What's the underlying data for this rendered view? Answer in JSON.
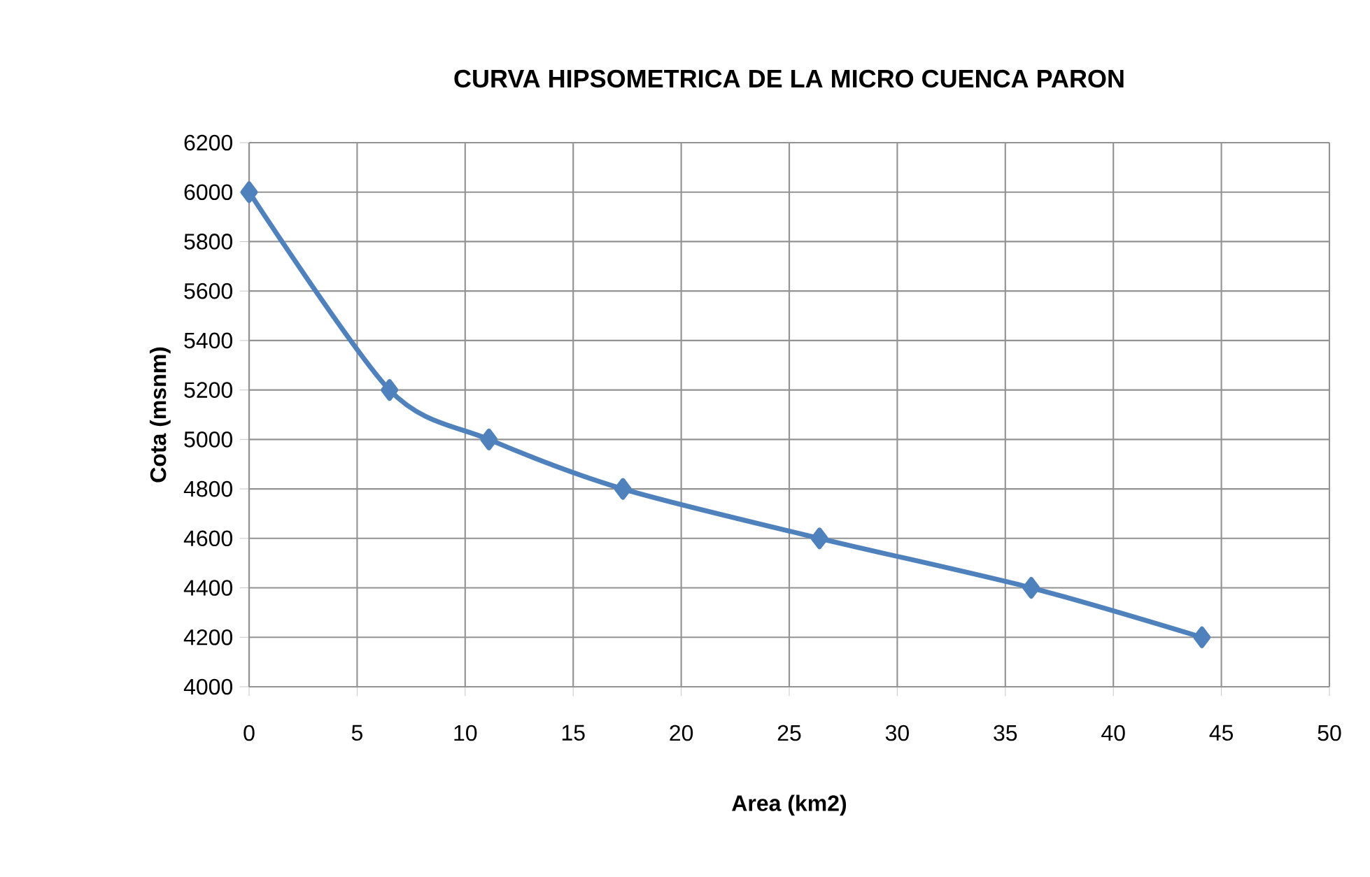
{
  "chart_data": {
    "type": "line",
    "title": "CURVA HIPSOMETRICA DE LA MICRO CUENCA PARON",
    "xlabel": "Area (km2)",
    "ylabel": "Cota (msnm)",
    "x": [
      0,
      6.5,
      11.1,
      17.3,
      26.4,
      36.2,
      44.1
    ],
    "series": [
      {
        "color": "#4f81bd",
        "values": [
          6000,
          5200,
          5000,
          4800,
          4600,
          4400,
          4200
        ]
      }
    ],
    "xlim": [
      0,
      50
    ],
    "xticks": [
      0,
      5,
      10,
      15,
      20,
      25,
      30,
      35,
      40,
      45,
      50
    ],
    "ylim": [
      4000,
      6200
    ],
    "yticks": [
      4000,
      4200,
      4400,
      4600,
      4800,
      5000,
      5200,
      5400,
      5600,
      5800,
      6000,
      6200
    ],
    "grid": true,
    "marker": "diamond",
    "line_style": "solid"
  }
}
